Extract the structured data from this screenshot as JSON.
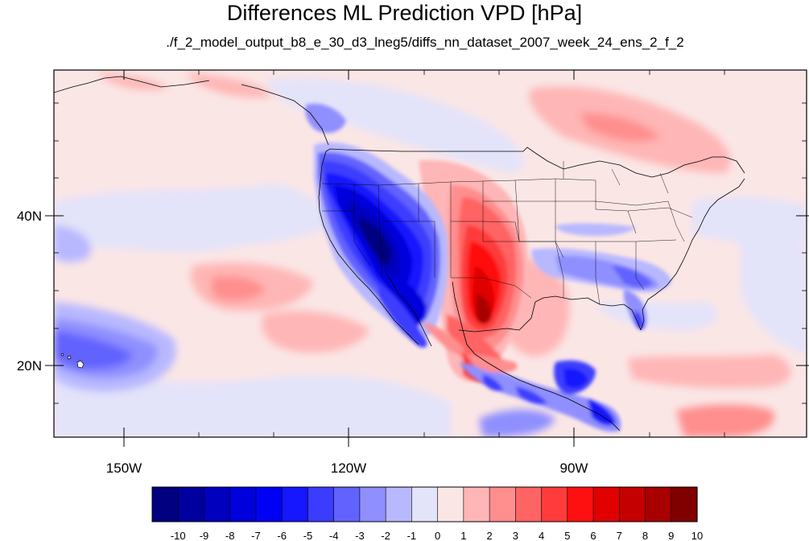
{
  "title": "Differences ML Prediction VPD [hPa]",
  "subtitle": "./f_2_model_output_b8_e_30_d3_lneg5/diffs_nn_dataset_2007_week_24_ens_2_f_2",
  "lat_labels": [
    "40N",
    "20N"
  ],
  "lon_labels": [
    "150W",
    "120W",
    "90W"
  ],
  "colorbar": {
    "labels": [
      "-10",
      "-9",
      "-8",
      "-7",
      "-6",
      "-5",
      "-4",
      "-3",
      "-2",
      "-1",
      "0",
      "1",
      "2",
      "3",
      "4",
      "5",
      "6",
      "7",
      "8",
      "9",
      "10"
    ],
    "colors": [
      "#000080",
      "#00009e",
      "#0000be",
      "#0000dc",
      "#0000f5",
      "#1616ff",
      "#3c3cff",
      "#6262ff",
      "#8f8fff",
      "#b8b8ff",
      "#e3e3fa",
      "#fbe6e6",
      "#ffb6b6",
      "#ff8e8e",
      "#ff6464",
      "#ff3b3b",
      "#ff1010",
      "#e00000",
      "#c40000",
      "#a80000",
      "#800000"
    ]
  }
}
